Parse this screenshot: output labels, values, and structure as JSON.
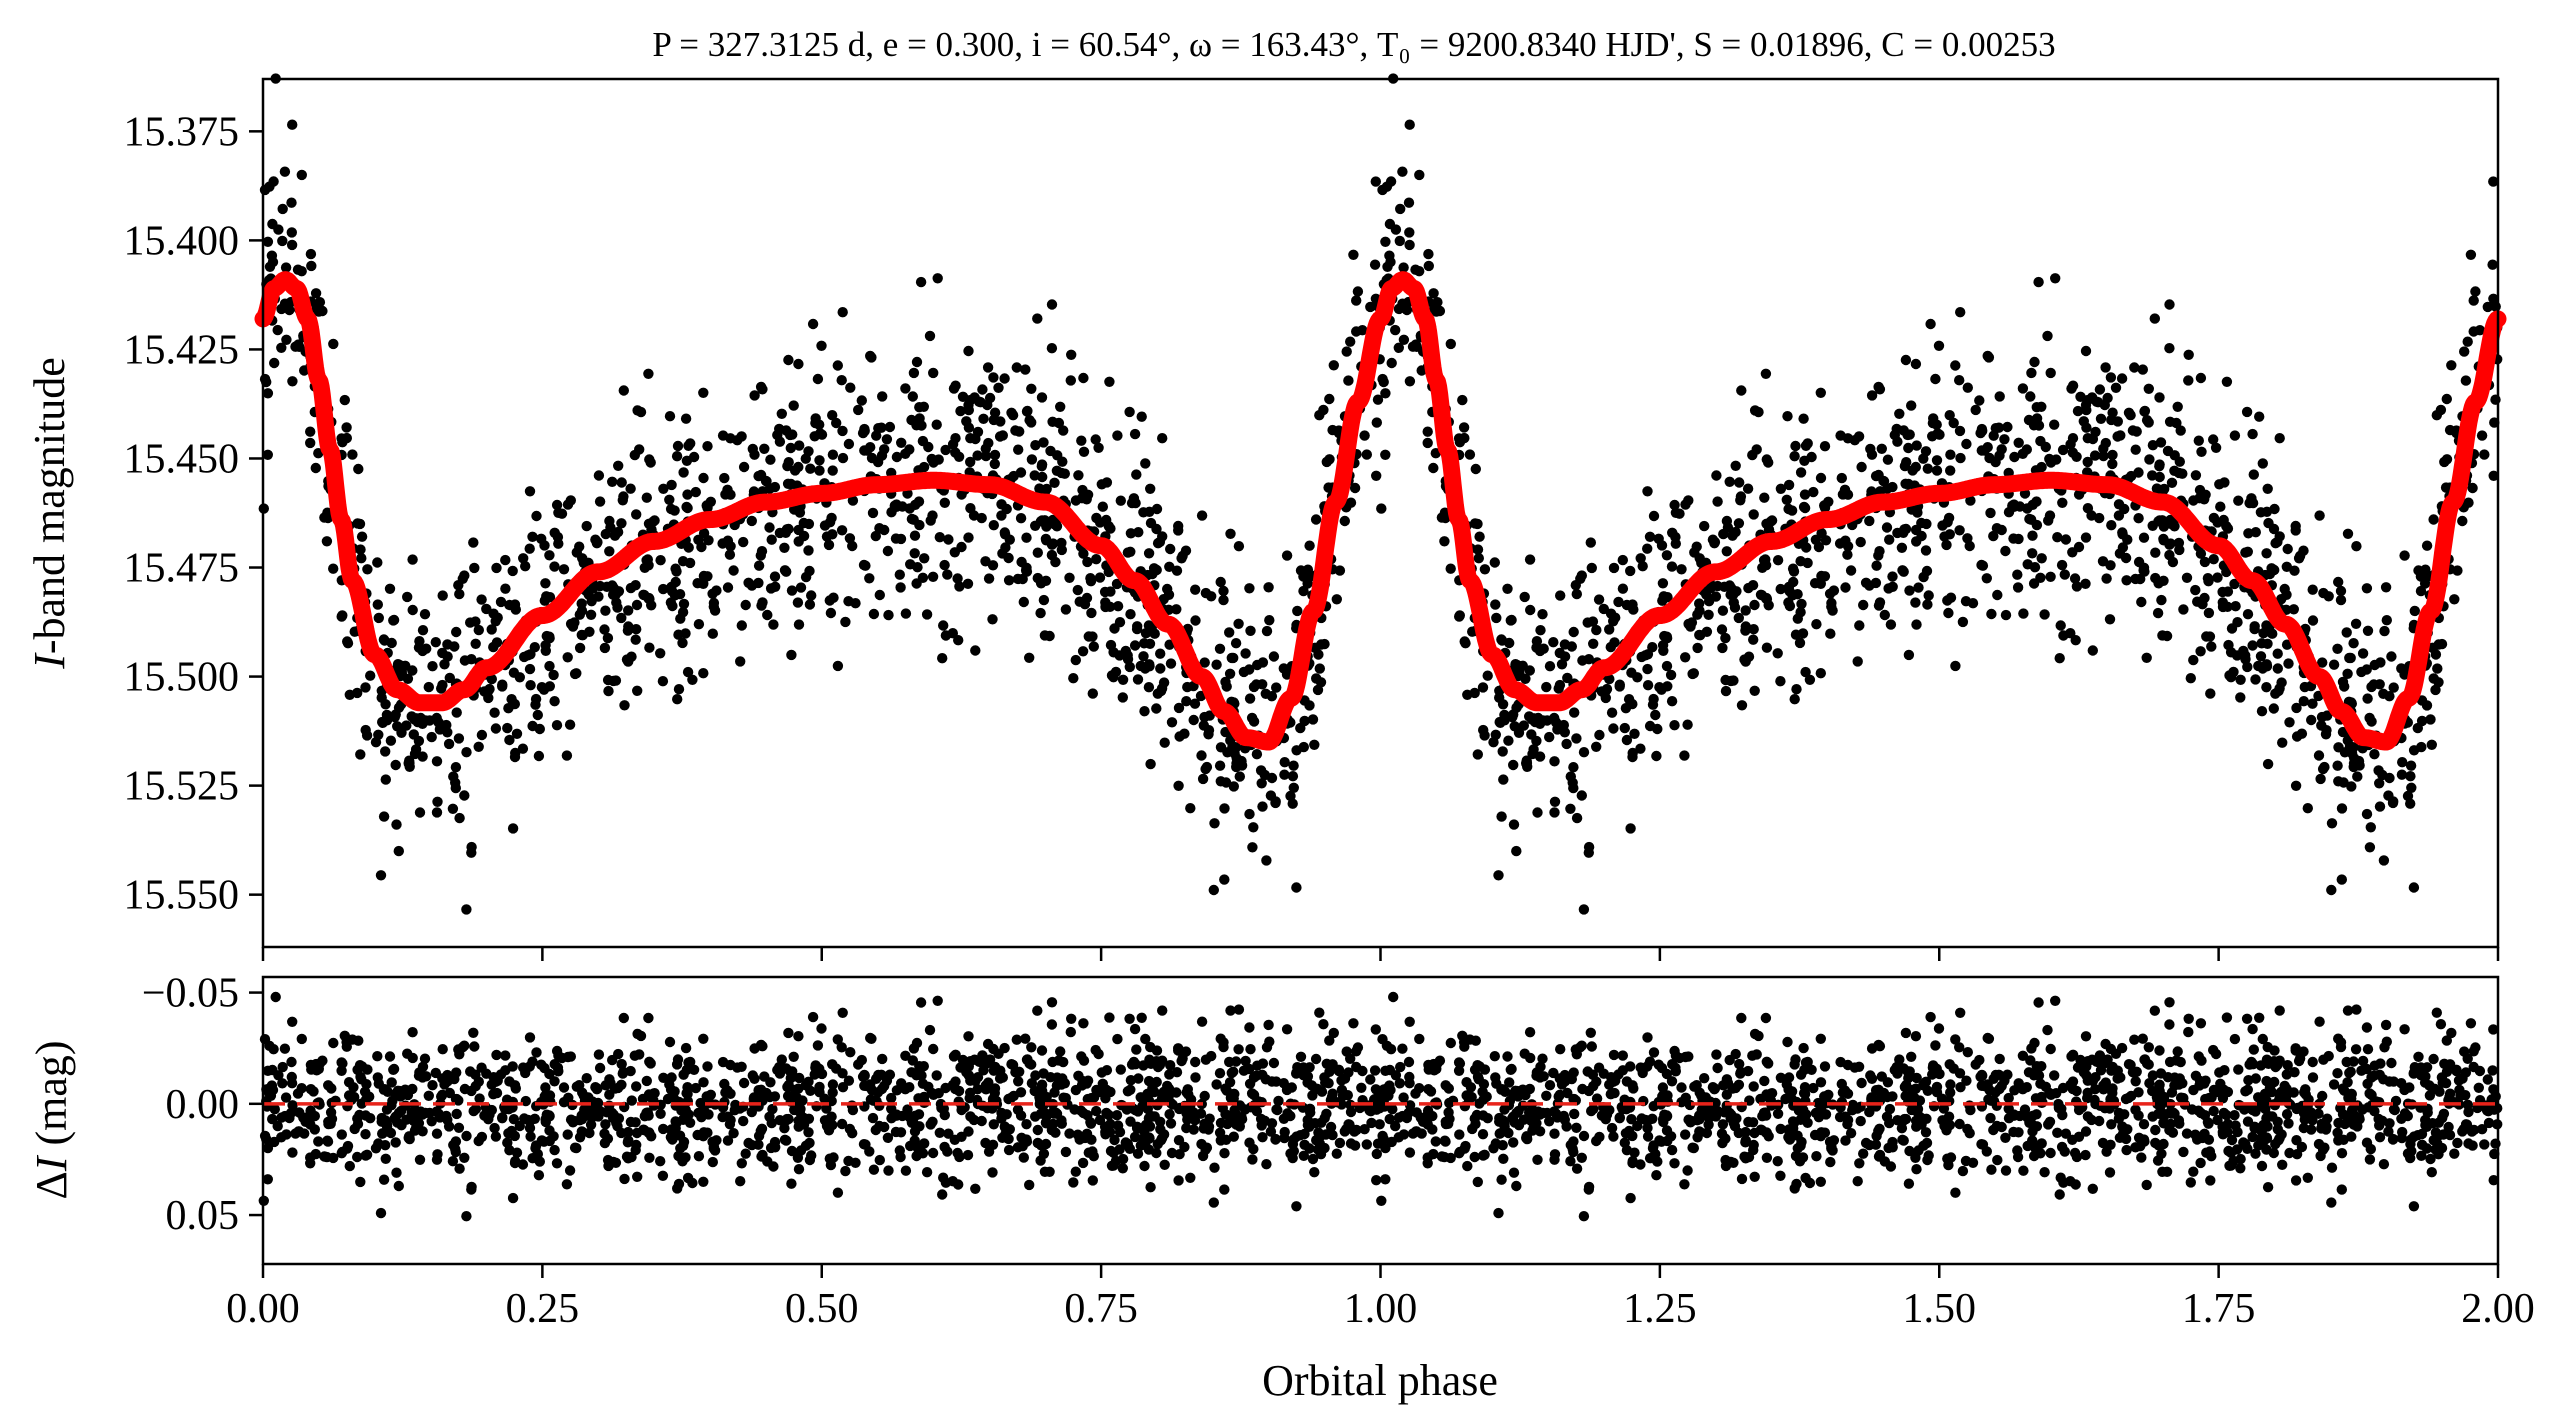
{
  "title": "P = 327.3125 d, e = 0.300, i = 60.54°, ω = 163.43°, T₀ = 9200.8340 HJD', S = 0.01896, C = 0.00253",
  "chart_data": [
    {
      "type": "scatter",
      "panel": "light-curve",
      "title": "P = 327.3125 d, e = 0.300, i = 60.54°, ω = 163.43°, T₀ = 9200.8340 HJD', S = 0.01896, C = 0.00253",
      "xlabel": "",
      "ylabel": "I-band magnitude",
      "ylabel_italic_prefix": "I",
      "ylabel_rest": "-band magnitude",
      "xlim": [
        0.0,
        2.0
      ],
      "ylim": [
        15.562,
        15.363
      ],
      "y_inverted": true,
      "y_ticks": [
        15.375,
        15.4,
        15.425,
        15.45,
        15.475,
        15.5,
        15.525,
        15.55
      ],
      "y_tick_labels": [
        "15.375",
        "15.400",
        "15.425",
        "15.450",
        "15.475",
        "15.500",
        "15.525",
        "15.550"
      ],
      "x_ticks": [
        0.0,
        0.25,
        0.5,
        0.75,
        1.0,
        1.25,
        1.5,
        1.75,
        2.0
      ],
      "grid": false,
      "series": [
        {
          "kind": "observations",
          "color": "#000000",
          "n_points_per_cycle": 1400,
          "scatter_sigma_mag": 0.016
        },
        {
          "kind": "model",
          "color": "#ff0000",
          "x": [
            0.0,
            0.01,
            0.02,
            0.03,
            0.04,
            0.05,
            0.06,
            0.07,
            0.08,
            0.1,
            0.12,
            0.14,
            0.16,
            0.18,
            0.2,
            0.25,
            0.3,
            0.35,
            0.4,
            0.45,
            0.5,
            0.55,
            0.6,
            0.65,
            0.7,
            0.75,
            0.78,
            0.81,
            0.84,
            0.86,
            0.88,
            0.9,
            0.92,
            0.94,
            0.96,
            0.98,
            1.0
          ],
          "y": [
            15.418,
            15.411,
            15.409,
            15.411,
            15.418,
            15.432,
            15.448,
            15.464,
            15.478,
            15.495,
            15.503,
            15.506,
            15.506,
            15.503,
            15.498,
            15.486,
            15.476,
            15.469,
            15.464,
            15.46,
            15.458,
            15.456,
            15.455,
            15.456,
            15.46,
            15.47,
            15.478,
            15.488,
            15.5,
            15.508,
            15.514,
            15.515,
            15.505,
            15.485,
            15.46,
            15.437,
            15.418
          ]
        }
      ]
    },
    {
      "type": "scatter",
      "panel": "residuals",
      "xlabel": "Orbital phase",
      "ylabel": "ΔI (mag)",
      "ylabel_prefix": "Δ",
      "ylabel_italic": "I",
      "ylabel_rest": " (mag)",
      "xlim": [
        0.0,
        2.0
      ],
      "ylim": [
        0.072,
        -0.057
      ],
      "y_inverted": true,
      "y_ticks": [
        -0.05,
        0.0,
        0.05
      ],
      "y_tick_labels": [
        "−0.05",
        "0.00",
        "0.05"
      ],
      "x_ticks": [
        0.0,
        0.25,
        0.5,
        0.75,
        1.0,
        1.25,
        1.5,
        1.75,
        2.0
      ],
      "x_tick_labels": [
        "0.00",
        "0.25",
        "0.50",
        "0.75",
        "1.00",
        "1.25",
        "1.50",
        "1.75",
        "2.00"
      ],
      "reference_line": {
        "y": 0.0,
        "color": "#e8231a",
        "style": "dashed"
      },
      "series": [
        {
          "kind": "residuals",
          "color": "#000000",
          "scatter_sigma_mag": 0.016
        }
      ]
    }
  ]
}
